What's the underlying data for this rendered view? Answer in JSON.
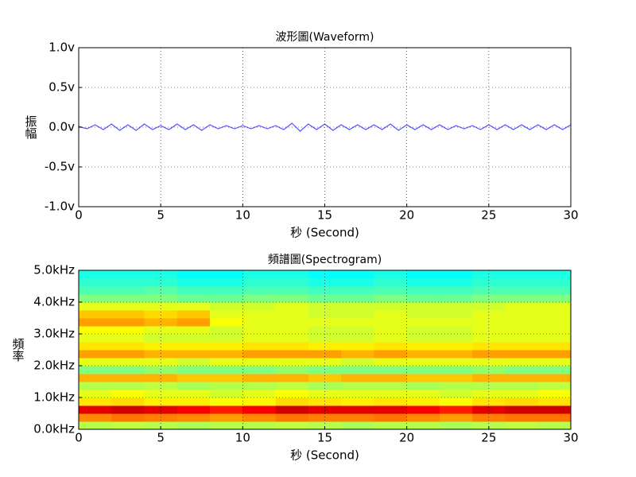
{
  "chart_data": [
    {
      "type": "line",
      "title": "波形圖(Waveform)",
      "xlabel": "秒 (Second)",
      "ylabel": "振幅",
      "x": [
        0,
        0.5,
        1,
        1.5,
        2,
        2.5,
        3,
        3.5,
        4,
        4.5,
        5,
        5.5,
        6,
        6.5,
        7,
        7.5,
        8,
        8.5,
        9,
        9.5,
        10,
        10.5,
        11,
        11.5,
        12,
        12.5,
        13,
        13.5,
        14,
        14.5,
        15,
        15.5,
        16,
        16.5,
        17,
        17.5,
        18,
        18.5,
        19,
        19.5,
        20,
        20.5,
        21,
        21.5,
        22,
        22.5,
        23,
        23.5,
        24,
        24.5,
        25,
        25.5,
        26,
        26.5,
        27,
        27.5,
        28,
        28.5,
        29,
        29.5,
        30
      ],
      "series": [
        {
          "color": "#5555ff",
          "values": [
            0.01,
            -0.02,
            0.03,
            -0.03,
            0.04,
            -0.04,
            0.03,
            -0.04,
            0.04,
            -0.03,
            0.02,
            -0.03,
            0.04,
            -0.03,
            0.03,
            -0.04,
            0.03,
            -0.02,
            0.02,
            -0.02,
            0.02,
            -0.02,
            0.02,
            -0.02,
            0.02,
            -0.03,
            0.05,
            -0.05,
            0.04,
            -0.03,
            0.04,
            -0.04,
            0.03,
            -0.03,
            0.03,
            -0.03,
            0.03,
            -0.03,
            0.04,
            -0.04,
            0.03,
            -0.03,
            0.03,
            -0.03,
            0.03,
            -0.03,
            0.02,
            -0.02,
            0.02,
            -0.03,
            0.03,
            -0.03,
            0.03,
            -0.03,
            0.03,
            -0.03,
            0.03,
            -0.03,
            0.03,
            -0.03,
            0.03
          ]
        }
      ],
      "xlim": [
        0,
        30
      ],
      "xticks": [
        0,
        5,
        10,
        15,
        20,
        25,
        30
      ],
      "ylim": [
        -1,
        1
      ],
      "yticks": [
        {
          "value": -1,
          "label": "-1.0v"
        },
        {
          "value": -0.5,
          "label": "-0.5v"
        },
        {
          "value": 0,
          "label": "0.0v"
        },
        {
          "value": 0.5,
          "label": "0.5v"
        },
        {
          "value": 1,
          "label": "1.0v"
        }
      ],
      "grid": true
    },
    {
      "type": "heatmap",
      "title": "頻譜圖(Spectrogram)",
      "xlabel": "秒 (Second)",
      "ylabel": "頻率",
      "x": [
        0,
        2,
        4,
        6,
        8,
        10,
        12,
        14,
        16,
        18,
        20,
        22,
        24,
        26,
        28,
        30
      ],
      "y": [
        0,
        0.25,
        0.5,
        0.75,
        1,
        1.25,
        1.5,
        1.75,
        2,
        2.25,
        2.5,
        2.75,
        3,
        3.25,
        3.5,
        3.75,
        4,
        4.25,
        4.5,
        4.75,
        5
      ],
      "colormap": "jet",
      "clim": [
        0,
        1
      ],
      "values": [
        [
          0.55,
          0.56,
          0.55,
          0.54,
          0.55,
          0.55,
          0.56,
          0.55,
          0.54,
          0.55,
          0.55,
          0.54,
          0.55,
          0.56,
          0.55
        ],
        [
          0.74,
          0.76,
          0.75,
          0.74,
          0.72,
          0.74,
          0.76,
          0.75,
          0.75,
          0.76,
          0.74,
          0.72,
          0.75,
          0.76,
          0.76
        ],
        [
          0.9,
          0.92,
          0.9,
          0.88,
          0.85,
          0.88,
          0.92,
          0.9,
          0.9,
          0.9,
          0.88,
          0.85,
          0.9,
          0.92,
          0.92
        ],
        [
          0.65,
          0.66,
          0.64,
          0.64,
          0.62,
          0.63,
          0.66,
          0.65,
          0.64,
          0.65,
          0.64,
          0.62,
          0.65,
          0.66,
          0.65
        ],
        [
          0.6,
          0.62,
          0.6,
          0.6,
          0.58,
          0.6,
          0.62,
          0.6,
          0.6,
          0.6,
          0.6,
          0.58,
          0.6,
          0.6,
          0.62
        ],
        [
          0.55,
          0.55,
          0.56,
          0.54,
          0.55,
          0.55,
          0.56,
          0.54,
          0.55,
          0.55,
          0.54,
          0.55,
          0.55,
          0.55,
          0.56
        ],
        [
          0.7,
          0.7,
          0.7,
          0.68,
          0.68,
          0.7,
          0.7,
          0.68,
          0.7,
          0.7,
          0.68,
          0.68,
          0.7,
          0.7,
          0.7
        ],
        [
          0.5,
          0.5,
          0.52,
          0.5,
          0.5,
          0.5,
          0.52,
          0.5,
          0.5,
          0.5,
          0.5,
          0.5,
          0.52,
          0.5,
          0.5
        ],
        [
          0.6,
          0.6,
          0.6,
          0.58,
          0.6,
          0.6,
          0.6,
          0.6,
          0.58,
          0.6,
          0.6,
          0.6,
          0.6,
          0.6,
          0.6
        ],
        [
          0.72,
          0.72,
          0.7,
          0.7,
          0.7,
          0.72,
          0.72,
          0.72,
          0.7,
          0.72,
          0.7,
          0.7,
          0.72,
          0.72,
          0.72
        ],
        [
          0.65,
          0.65,
          0.64,
          0.64,
          0.64,
          0.65,
          0.65,
          0.64,
          0.64,
          0.65,
          0.64,
          0.64,
          0.65,
          0.65,
          0.65
        ],
        [
          0.6,
          0.6,
          0.58,
          0.58,
          0.58,
          0.6,
          0.6,
          0.58,
          0.58,
          0.6,
          0.58,
          0.58,
          0.6,
          0.6,
          0.6
        ],
        [
          0.62,
          0.62,
          0.6,
          0.6,
          0.58,
          0.6,
          0.6,
          0.58,
          0.58,
          0.6,
          0.58,
          0.58,
          0.6,
          0.6,
          0.6
        ],
        [
          0.72,
          0.72,
          0.7,
          0.72,
          0.62,
          0.6,
          0.6,
          0.6,
          0.6,
          0.6,
          0.6,
          0.6,
          0.6,
          0.6,
          0.6
        ],
        [
          0.68,
          0.68,
          0.66,
          0.68,
          0.6,
          0.6,
          0.6,
          0.58,
          0.58,
          0.6,
          0.58,
          0.58,
          0.6,
          0.6,
          0.6
        ],
        [
          0.6,
          0.6,
          0.6,
          0.6,
          0.58,
          0.58,
          0.6,
          0.58,
          0.58,
          0.58,
          0.58,
          0.58,
          0.58,
          0.6,
          0.6
        ],
        [
          0.5,
          0.5,
          0.5,
          0.48,
          0.48,
          0.5,
          0.5,
          0.48,
          0.48,
          0.5,
          0.48,
          0.48,
          0.5,
          0.5,
          0.5
        ],
        [
          0.45,
          0.45,
          0.46,
          0.44,
          0.44,
          0.45,
          0.45,
          0.44,
          0.44,
          0.45,
          0.44,
          0.44,
          0.45,
          0.45,
          0.45
        ],
        [
          0.42,
          0.42,
          0.42,
          0.4,
          0.4,
          0.42,
          0.42,
          0.4,
          0.4,
          0.42,
          0.4,
          0.4,
          0.42,
          0.42,
          0.42
        ],
        [
          0.4,
          0.4,
          0.4,
          0.38,
          0.38,
          0.4,
          0.4,
          0.38,
          0.38,
          0.4,
          0.38,
          0.38,
          0.4,
          0.4,
          0.4
        ]
      ],
      "xlim": [
        0,
        30
      ],
      "xticks": [
        0,
        5,
        10,
        15,
        20,
        25,
        30
      ],
      "ylim": [
        0,
        5
      ],
      "yticks": [
        {
          "value": 0,
          "label": "0.0kHz"
        },
        {
          "value": 1,
          "label": "1.0kHz"
        },
        {
          "value": 2,
          "label": "2.0kHz"
        },
        {
          "value": 3,
          "label": "3.0kHz"
        },
        {
          "value": 4,
          "label": "4.0kHz"
        },
        {
          "value": 5,
          "label": "5.0kHz"
        }
      ],
      "grid": true
    }
  ]
}
